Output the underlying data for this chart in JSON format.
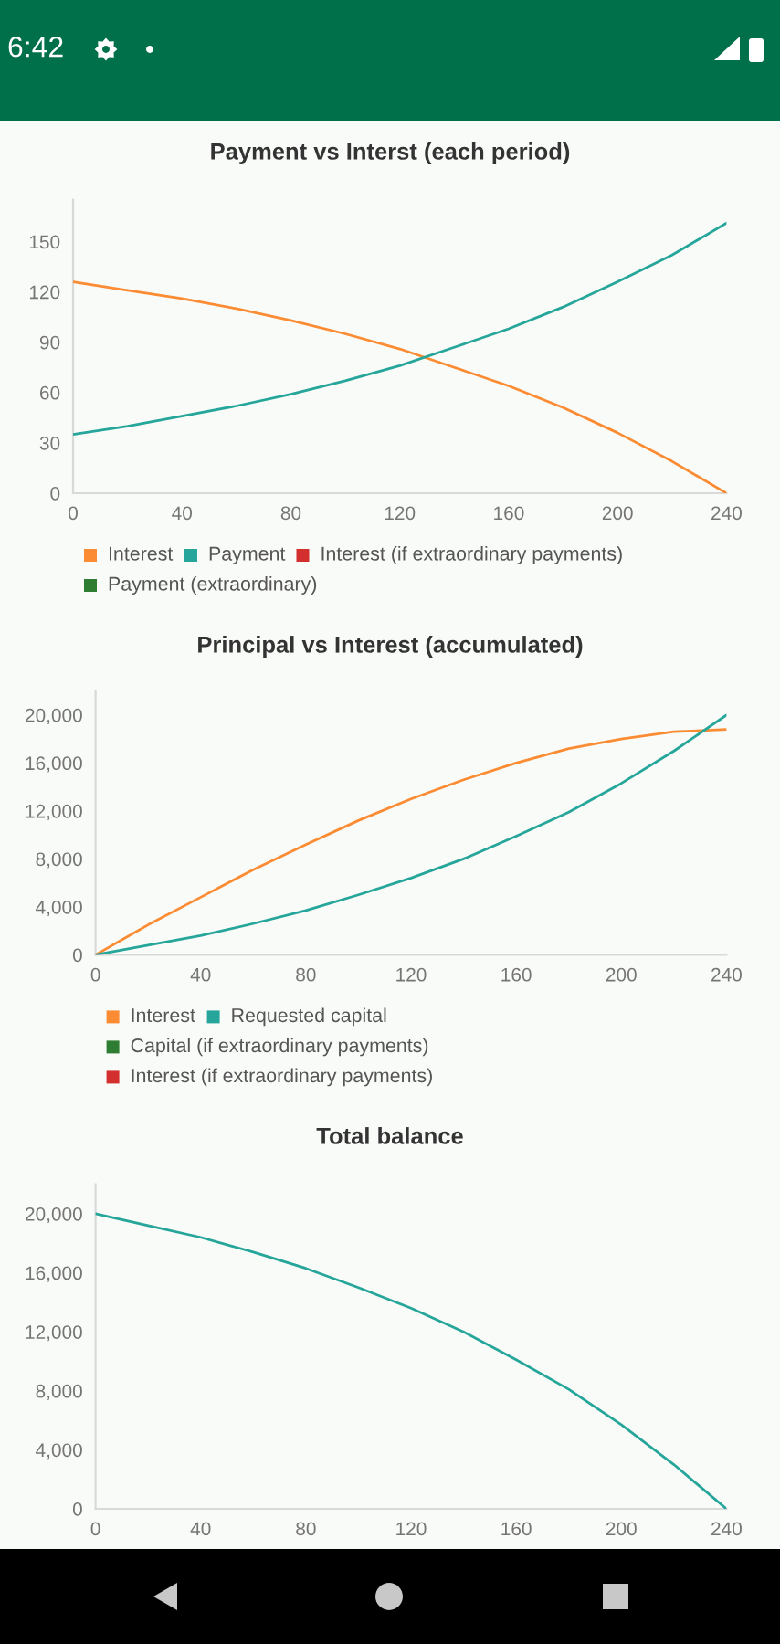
{
  "chart_data": [
    {
      "type": "line",
      "title": "Payment vs Interst (each period)",
      "x": [
        0,
        20,
        40,
        60,
        80,
        100,
        120,
        140,
        160,
        180,
        200,
        220,
        240
      ],
      "series": [
        {
          "name": "Interest",
          "color": "#fb8c34",
          "values": [
            126,
            121,
            116,
            110,
            103,
            95,
            86,
            75,
            64,
            51,
            36,
            19,
            0
          ]
        },
        {
          "name": "Payment",
          "color": "#26a69a",
          "values": [
            35,
            40,
            46,
            52,
            59,
            67,
            76,
            87,
            98,
            111,
            126,
            142,
            161
          ]
        },
        {
          "name": "Interest (if extraordinary payments)",
          "color": "#d32f2f",
          "values": [
            null,
            null,
            null,
            null,
            null,
            null,
            null,
            null,
            null,
            null,
            null,
            null,
            null
          ]
        },
        {
          "name": "Payment (extraordinary)",
          "color": "#2e7d32",
          "values": [
            null,
            null,
            null,
            null,
            null,
            null,
            null,
            null,
            null,
            null,
            null,
            null,
            null
          ]
        }
      ],
      "xlim": [
        0,
        240
      ],
      "xticks": [
        0,
        40,
        80,
        120,
        160,
        200,
        240
      ],
      "ylim": [
        0,
        175
      ],
      "yticks": [
        0,
        30,
        60,
        90,
        120,
        150
      ],
      "legend": "bottom left",
      "annotations": [
        "6:42"
      ]
    },
    {
      "type": "line",
      "title": "Principal vs Interest (accumulated)",
      "x": [
        0,
        20,
        40,
        60,
        80,
        100,
        120,
        140,
        160,
        180,
        200,
        220,
        240
      ],
      "series": [
        {
          "name": "Interest",
          "color": "#fb8c34",
          "values": [
            0,
            2500,
            4800,
            7100,
            9200,
            11200,
            13000,
            14600,
            16000,
            17200,
            18000,
            18600,
            18800
          ]
        },
        {
          "name": "Requested capital",
          "color": "#26a69a",
          "values": [
            0,
            800,
            1600,
            2600,
            3700,
            5000,
            6400,
            8000,
            9900,
            11900,
            14300,
            17000,
            20000
          ]
        },
        {
          "name": "Capital (if extraordinary payments)",
          "color": "#2e7d32",
          "values": [
            null,
            null,
            null,
            null,
            null,
            null,
            null,
            null,
            null,
            null,
            null,
            null,
            null
          ]
        },
        {
          "name": "Interest (if extraordinary payments)",
          "color": "#d32f2f",
          "values": [
            null,
            null,
            null,
            null,
            null,
            null,
            null,
            null,
            null,
            null,
            null,
            null,
            null
          ]
        }
      ],
      "xlim": [
        0,
        240
      ],
      "xticks": [
        0,
        40,
        80,
        120,
        160,
        200,
        240
      ],
      "ylim": [
        0,
        22000
      ],
      "yticks": [
        0,
        {
          "value": 4000,
          "label": "4,000"
        },
        {
          "value": 8000,
          "label": "8,000"
        },
        {
          "value": 12000,
          "label": "12,000"
        },
        {
          "value": 16000,
          "label": "16,000"
        },
        {
          "value": 20000,
          "label": "20,000"
        }
      ],
      "legend": "bottom left"
    },
    {
      "type": "line",
      "title": "Total balance",
      "x": [
        0,
        20,
        40,
        60,
        80,
        100,
        120,
        140,
        160,
        180,
        200,
        220,
        240
      ],
      "color": "#26a69a",
      "values": [
        20000,
        19200,
        18400,
        17400,
        16300,
        15000,
        13600,
        12000,
        10100,
        8100,
        5700,
        3000,
        0
      ],
      "xlim": [
        0,
        240
      ],
      "xticks": [
        0,
        40,
        80,
        120,
        160,
        200,
        240
      ],
      "ylim": [
        0,
        22000
      ],
      "yticks": [
        0,
        {
          "value": 4000,
          "label": "4,000"
        },
        {
          "value": 8000,
          "label": "8,000"
        },
        {
          "value": 12000,
          "label": "12,000"
        },
        {
          "value": 16000,
          "label": "16,000"
        },
        {
          "value": 20000,
          "label": "20,000"
        }
      ]
    }
  ]
}
